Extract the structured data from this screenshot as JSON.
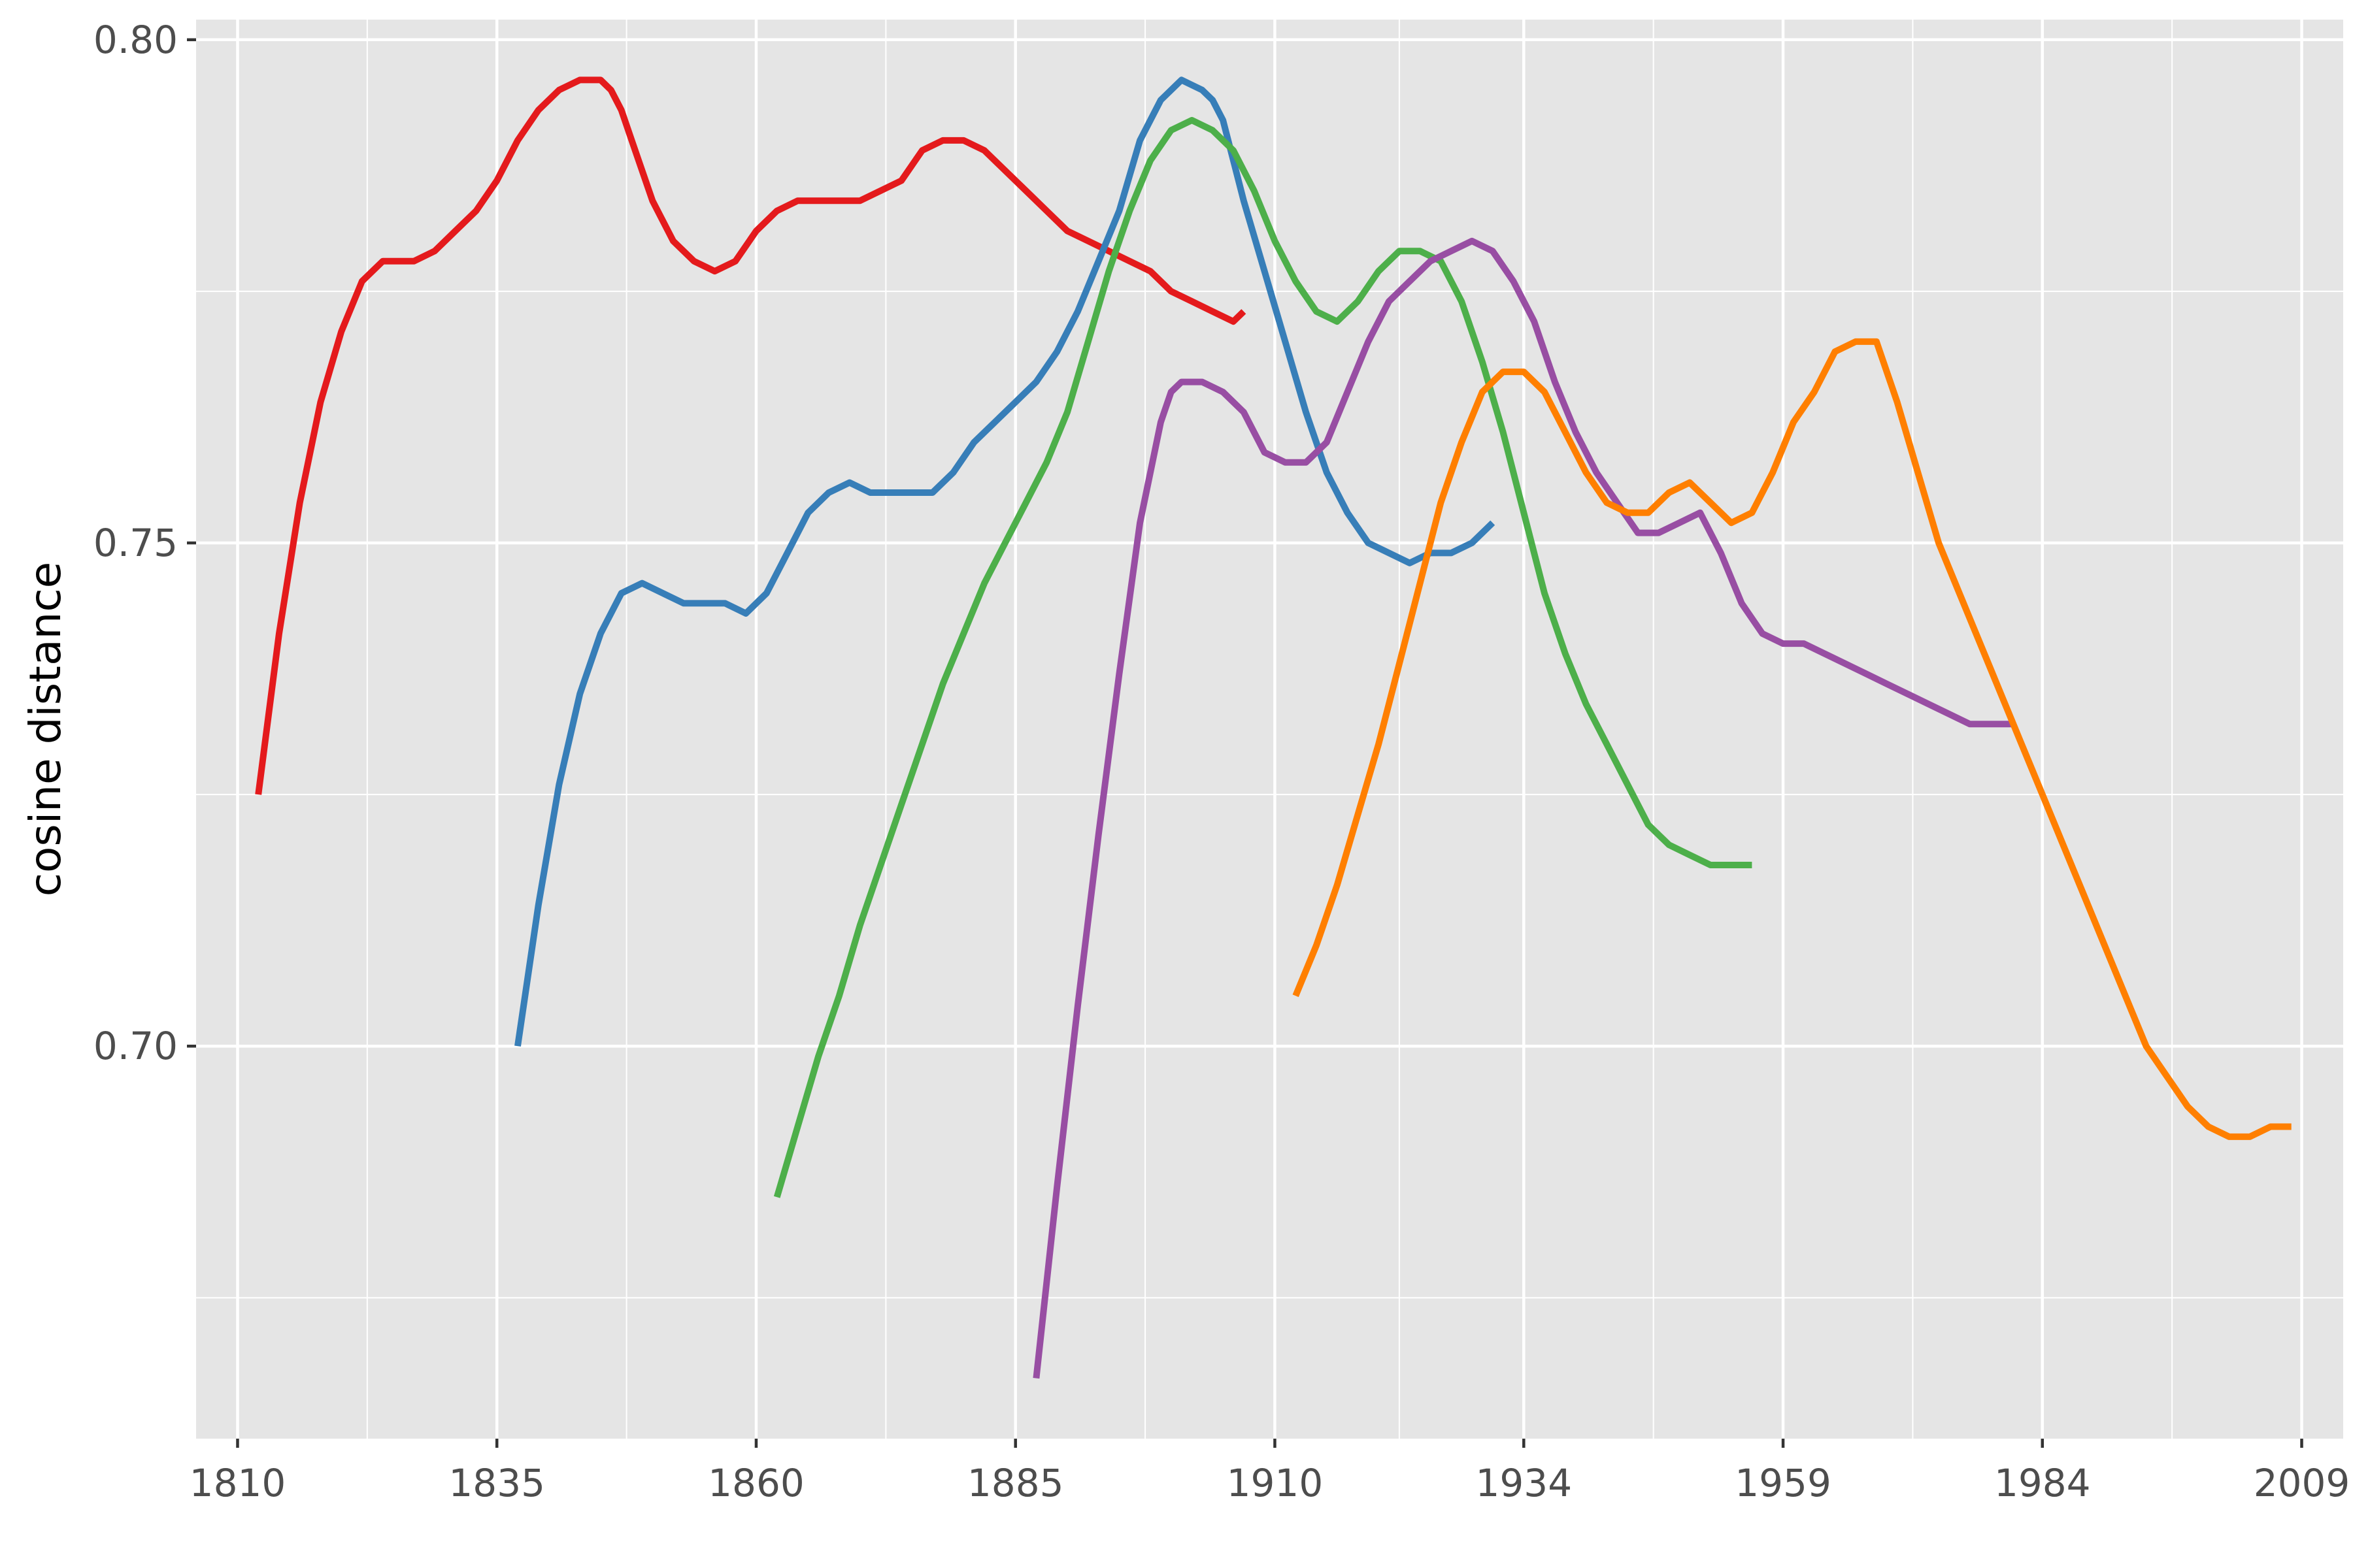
{
  "chart_data": {
    "type": "line",
    "title": "",
    "xlabel": "",
    "ylabel": "cosine distance",
    "xlim": [
      1806,
      2013
    ],
    "ylim": [
      0.661,
      0.802
    ],
    "x_ticks": [
      1810,
      1835,
      1860,
      1885,
      1910,
      1934,
      1959,
      1984,
      2009
    ],
    "y_ticks": [
      0.7,
      0.75,
      0.8
    ],
    "y_tick_labels": [
      "0.70",
      "0.75",
      "0.80"
    ],
    "grid": true,
    "legend": "none",
    "panel_background": "#e5e5e5",
    "grid_color": "#ffffff",
    "series": [
      {
        "color": "#e41a1c",
        "x": [
          1812,
          1814,
          1816,
          1818,
          1820,
          1822,
          1824,
          1825,
          1827,
          1829,
          1831,
          1833,
          1835,
          1837,
          1839,
          1841,
          1843,
          1845,
          1846,
          1847,
          1848,
          1850,
          1852,
          1854,
          1856,
          1858,
          1860,
          1862,
          1864,
          1866,
          1868,
          1870,
          1872,
          1874,
          1876,
          1878,
          1880,
          1882,
          1884,
          1886,
          1888,
          1890,
          1892,
          1894,
          1896,
          1898,
          1900,
          1902,
          1904,
          1906,
          1907
        ],
        "y": [
          0.725,
          0.741,
          0.754,
          0.764,
          0.771,
          0.776,
          0.778,
          0.778,
          0.778,
          0.779,
          0.781,
          0.783,
          0.786,
          0.79,
          0.793,
          0.795,
          0.796,
          0.796,
          0.795,
          0.793,
          0.79,
          0.784,
          0.78,
          0.778,
          0.777,
          0.778,
          0.781,
          0.783,
          0.784,
          0.784,
          0.784,
          0.784,
          0.785,
          0.786,
          0.789,
          0.79,
          0.79,
          0.789,
          0.787,
          0.785,
          0.783,
          0.781,
          0.78,
          0.779,
          0.778,
          0.777,
          0.775,
          0.774,
          0.773,
          0.772,
          0.773
        ]
      },
      {
        "color": "#377eb8",
        "x": [
          1837,
          1839,
          1841,
          1843,
          1845,
          1847,
          1849,
          1851,
          1853,
          1855,
          1857,
          1859,
          1861,
          1863,
          1865,
          1867,
          1869,
          1871,
          1873,
          1875,
          1877,
          1879,
          1881,
          1883,
          1885,
          1887,
          1889,
          1891,
          1893,
          1895,
          1897,
          1899,
          1901,
          1903,
          1904,
          1905,
          1906,
          1907,
          1909,
          1911,
          1913,
          1915,
          1917,
          1919,
          1921,
          1923,
          1925,
          1927,
          1929,
          1931
        ],
        "y": [
          0.7,
          0.714,
          0.726,
          0.735,
          0.741,
          0.745,
          0.746,
          0.745,
          0.744,
          0.744,
          0.744,
          0.743,
          0.745,
          0.749,
          0.753,
          0.755,
          0.756,
          0.755,
          0.755,
          0.755,
          0.755,
          0.757,
          0.76,
          0.762,
          0.764,
          0.766,
          0.769,
          0.773,
          0.778,
          0.783,
          0.79,
          0.794,
          0.796,
          0.795,
          0.794,
          0.792,
          0.788,
          0.784,
          0.777,
          0.77,
          0.763,
          0.757,
          0.753,
          0.75,
          0.749,
          0.748,
          0.749,
          0.749,
          0.75,
          0.752
        ]
      },
      {
        "color": "#4daf4a",
        "x": [
          1862,
          1864,
          1866,
          1868,
          1870,
          1872,
          1874,
          1876,
          1878,
          1880,
          1882,
          1884,
          1886,
          1888,
          1890,
          1892,
          1894,
          1896,
          1898,
          1900,
          1902,
          1904,
          1906,
          1908,
          1910,
          1912,
          1914,
          1916,
          1918,
          1920,
          1922,
          1924,
          1926,
          1928,
          1930,
          1932,
          1934,
          1936,
          1938,
          1940,
          1942,
          1944,
          1946,
          1948,
          1950,
          1952,
          1954,
          1956
        ],
        "y": [
          0.685,
          0.692,
          0.699,
          0.705,
          0.712,
          0.718,
          0.724,
          0.73,
          0.736,
          0.741,
          0.746,
          0.75,
          0.754,
          0.758,
          0.763,
          0.77,
          0.777,
          0.783,
          0.788,
          0.791,
          0.792,
          0.791,
          0.789,
          0.785,
          0.78,
          0.776,
          0.773,
          0.772,
          0.774,
          0.777,
          0.779,
          0.779,
          0.778,
          0.774,
          0.768,
          0.761,
          0.753,
          0.745,
          0.739,
          0.734,
          0.73,
          0.726,
          0.722,
          0.72,
          0.719,
          0.718,
          0.718,
          0.718
        ]
      },
      {
        "color": "#984ea3",
        "x": [
          1887,
          1889,
          1891,
          1893,
          1895,
          1897,
          1899,
          1900,
          1901,
          1902,
          1903,
          1905,
          1907,
          1909,
          1911,
          1913,
          1915,
          1917,
          1919,
          1921,
          1923,
          1925,
          1927,
          1929,
          1931,
          1933,
          1935,
          1937,
          1939,
          1941,
          1943,
          1945,
          1947,
          1949,
          1951,
          1953,
          1955,
          1957,
          1959,
          1961,
          1963,
          1965,
          1967,
          1969,
          1971,
          1973,
          1975,
          1977,
          1979,
          1981
        ],
        "y": [
          0.667,
          0.686,
          0.704,
          0.721,
          0.737,
          0.752,
          0.762,
          0.765,
          0.766,
          0.766,
          0.766,
          0.765,
          0.763,
          0.759,
          0.758,
          0.758,
          0.76,
          0.765,
          0.77,
          0.774,
          0.776,
          0.778,
          0.779,
          0.78,
          0.779,
          0.776,
          0.772,
          0.766,
          0.761,
          0.757,
          0.754,
          0.751,
          0.751,
          0.752,
          0.753,
          0.749,
          0.744,
          0.741,
          0.74,
          0.74,
          0.739,
          0.738,
          0.737,
          0.736,
          0.735,
          0.734,
          0.733,
          0.732,
          0.732,
          0.732
        ]
      },
      {
        "color": "#ff7f00",
        "x": [
          1912,
          1914,
          1916,
          1918,
          1920,
          1922,
          1924,
          1926,
          1928,
          1930,
          1932,
          1934,
          1936,
          1938,
          1940,
          1942,
          1944,
          1946,
          1948,
          1950,
          1952,
          1954,
          1956,
          1958,
          1960,
          1962,
          1964,
          1966,
          1968,
          1970,
          1972,
          1974,
          1976,
          1978,
          1980,
          1982,
          1984,
          1986,
          1988,
          1990,
          1992,
          1994,
          1996,
          1998,
          2000,
          2002,
          2004,
          2006,
          2008
        ],
        "y": [
          0.705,
          0.71,
          0.716,
          0.723,
          0.73,
          0.738,
          0.746,
          0.754,
          0.76,
          0.765,
          0.767,
          0.767,
          0.765,
          0.761,
          0.757,
          0.754,
          0.753,
          0.753,
          0.755,
          0.756,
          0.754,
          0.752,
          0.753,
          0.757,
          0.762,
          0.765,
          0.769,
          0.77,
          0.77,
          0.764,
          0.757,
          0.75,
          0.745,
          0.74,
          0.735,
          0.73,
          0.725,
          0.72,
          0.715,
          0.71,
          0.705,
          0.7,
          0.697,
          0.694,
          0.692,
          0.691,
          0.691,
          0.692,
          0.692
        ]
      }
    ]
  }
}
